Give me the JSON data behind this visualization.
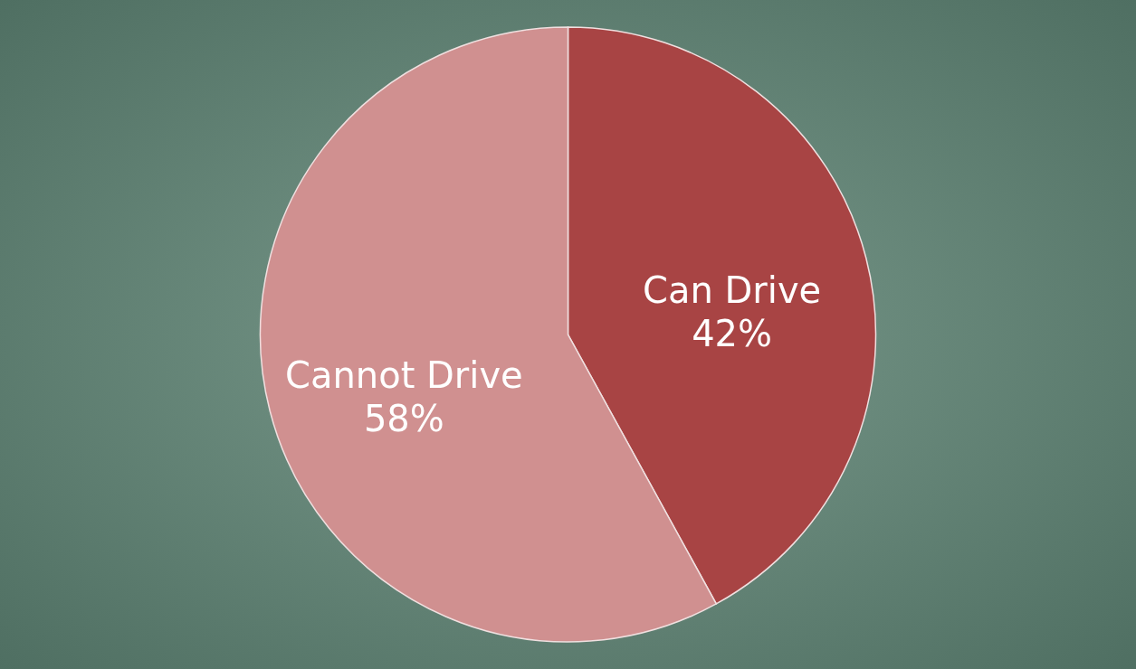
{
  "chart_data": {
    "type": "pie",
    "categories": [
      "Can Drive",
      "Cannot Drive"
    ],
    "values": [
      42,
      58
    ],
    "value_labels": [
      "42%",
      "58%"
    ],
    "colors": [
      "#a84444",
      "#d09090"
    ]
  }
}
